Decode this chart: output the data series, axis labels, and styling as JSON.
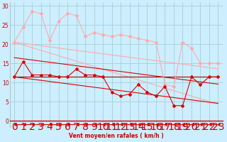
{
  "xlabel": "Vent moyen/en rafales ( km/h )",
  "bg_color": "#cceeff",
  "grid_color": "#99cccc",
  "x": [
    0,
    1,
    2,
    3,
    4,
    5,
    6,
    7,
    8,
    9,
    10,
    11,
    12,
    13,
    14,
    15,
    16,
    17,
    18,
    19,
    20,
    21,
    22,
    23
  ],
  "ylim": [
    -1.5,
    31
  ],
  "xlim": [
    -0.5,
    23.5
  ],
  "yticks": [
    0,
    5,
    10,
    15,
    20,
    25,
    30
  ],
  "series": [
    {
      "y": [
        20.5,
        24.5,
        28.5,
        28.0,
        21.0,
        26.0,
        28.0,
        27.5,
        22.0,
        23.0,
        22.5,
        22.0,
        22.5,
        22.0,
        21.5,
        21.0,
        20.5,
        9.5,
        9.0,
        20.5,
        19.0,
        15.0,
        15.0,
        15.0
      ],
      "color": "#ffaaaa",
      "marker": "D",
      "markersize": 2.0,
      "linewidth": 0.8,
      "linestyle": "-",
      "zorder": 3
    },
    {
      "y": [
        20.5,
        20.2,
        19.9,
        19.6,
        19.3,
        19.0,
        18.7,
        18.4,
        18.1,
        17.8,
        17.5,
        17.2,
        16.9,
        16.6,
        16.3,
        16.0,
        15.7,
        15.4,
        15.1,
        14.8,
        14.5,
        14.2,
        13.9,
        13.6
      ],
      "color": "#ffaaaa",
      "marker": "None",
      "markersize": 0,
      "linewidth": 0.8,
      "linestyle": "-",
      "zorder": 2
    },
    {
      "y": [
        20.5,
        19.8,
        19.1,
        18.4,
        17.7,
        17.0,
        16.3,
        15.6,
        14.9,
        14.2,
        13.5,
        12.8,
        12.1,
        11.4,
        10.7,
        10.0,
        9.3,
        8.6,
        7.9,
        7.2,
        6.5,
        5.8,
        5.1,
        4.4
      ],
      "color": "#ffaaaa",
      "marker": "None",
      "markersize": 0,
      "linewidth": 0.8,
      "linestyle": "-",
      "zorder": 2
    },
    {
      "y": [
        11.5,
        15.5,
        12.0,
        12.0,
        12.0,
        11.5,
        11.5,
        13.5,
        12.0,
        12.0,
        11.5,
        7.5,
        6.5,
        7.0,
        9.5,
        7.5,
        6.5,
        9.0,
        4.0,
        4.0,
        11.5,
        9.5,
        11.5,
        11.5
      ],
      "color": "#dd0000",
      "marker": "D",
      "markersize": 2.0,
      "linewidth": 0.8,
      "linestyle": "-",
      "zorder": 4
    },
    {
      "y": [
        16.5,
        16.2,
        15.9,
        15.6,
        15.3,
        15.0,
        14.7,
        14.4,
        14.1,
        13.8,
        13.5,
        13.2,
        12.9,
        12.6,
        12.3,
        12.0,
        11.7,
        11.4,
        11.1,
        10.8,
        10.5,
        10.2,
        9.9,
        9.6
      ],
      "color": "#dd0000",
      "marker": "None",
      "markersize": 0,
      "linewidth": 0.8,
      "linestyle": "-",
      "zorder": 2
    },
    {
      "y": [
        11.5,
        11.2,
        10.9,
        10.6,
        10.3,
        10.0,
        9.7,
        9.4,
        9.1,
        8.8,
        8.5,
        8.2,
        7.9,
        7.6,
        7.3,
        7.0,
        6.7,
        6.4,
        6.1,
        5.8,
        5.5,
        5.2,
        4.9,
        4.6
      ],
      "color": "#dd0000",
      "marker": "None",
      "markersize": 0,
      "linewidth": 0.8,
      "linestyle": "-",
      "zorder": 2
    },
    {
      "y": [
        11.5,
        11.5,
        11.5,
        11.5,
        11.5,
        11.5,
        11.5,
        11.5,
        11.5,
        11.5,
        11.5,
        11.5,
        11.5,
        11.5,
        11.5,
        11.5,
        11.5,
        11.5,
        11.5,
        11.5,
        11.5,
        11.5,
        11.5,
        11.5
      ],
      "color": "#aa0000",
      "marker": "None",
      "markersize": 0,
      "linewidth": 0.8,
      "linestyle": "-",
      "zorder": 2
    },
    {
      "y": [
        -0.8,
        -0.8,
        -0.8,
        -0.8,
        -0.8,
        -0.8,
        -0.8,
        -0.8,
        -0.8,
        -0.8,
        -0.8,
        -0.8,
        -0.8,
        -0.8,
        -0.8,
        -0.8,
        -0.8,
        -0.8,
        -0.8,
        -0.8,
        -0.8,
        -0.8,
        -0.8,
        -0.8
      ],
      "color": "#dd0000",
      "marker": 4,
      "markersize": 3.0,
      "linewidth": 0.8,
      "linestyle": "-",
      "zorder": 3
    }
  ]
}
